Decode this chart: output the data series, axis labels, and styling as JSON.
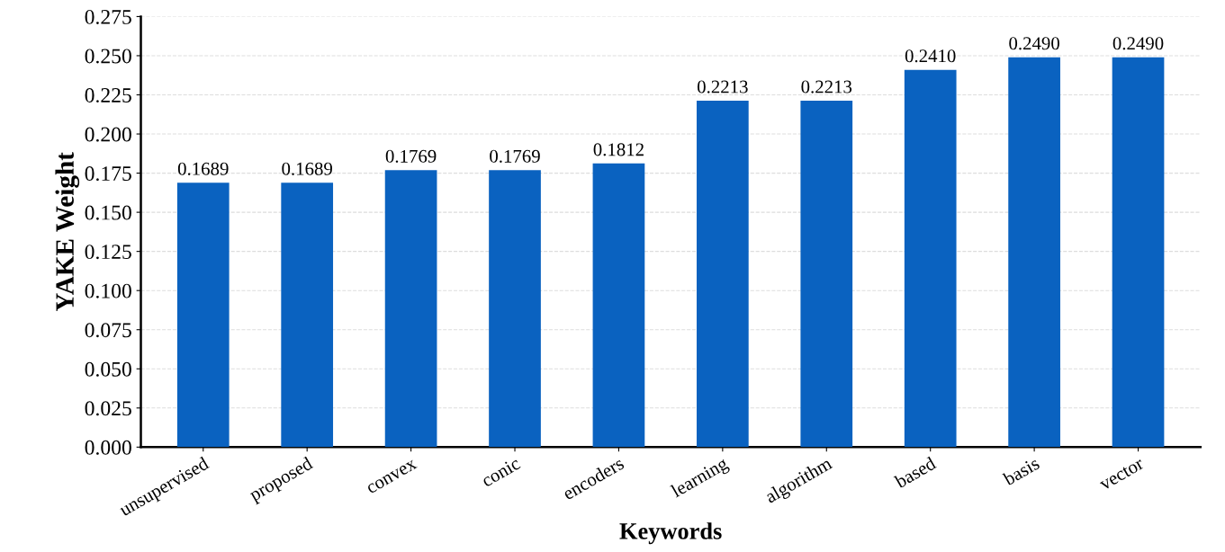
{
  "chart_data": {
    "type": "bar",
    "xlabel": "Keywords",
    "ylabel": "YAKE Weight",
    "categories": [
      "unsupervised",
      "proposed",
      "convex",
      "conic",
      "encoders",
      "learning",
      "algorithm",
      "based",
      "basis",
      "vector"
    ],
    "values": [
      0.1689,
      0.1689,
      0.1769,
      0.1769,
      0.1812,
      0.2213,
      0.2213,
      0.241,
      0.249,
      0.249
    ],
    "color": "#0a62c0",
    "ylim": [
      0,
      0.275
    ],
    "yticks": [
      {
        "value": 0,
        "label": "0.000"
      },
      {
        "value": 0.025,
        "label": "0.025"
      },
      {
        "value": 0.05,
        "label": "0.050"
      },
      {
        "value": 0.075,
        "label": "0.075"
      },
      {
        "value": 0.1,
        "label": "0.100"
      },
      {
        "value": 0.125,
        "label": "0.125"
      },
      {
        "value": 0.15,
        "label": "0.150"
      },
      {
        "value": 0.175,
        "label": "0.175"
      },
      {
        "value": 0.2,
        "label": "0.200"
      },
      {
        "value": 0.225,
        "label": "0.225"
      },
      {
        "value": 0.25,
        "label": "0.250"
      },
      {
        "value": 0.275,
        "label": "0.275"
      }
    ],
    "value_labels": [
      "0.1689",
      "0.1689",
      "0.1769",
      "0.1769",
      "0.1812",
      "0.2213",
      "0.2213",
      "0.2410",
      "0.2490",
      "0.2490"
    ],
    "grid": "y"
  }
}
